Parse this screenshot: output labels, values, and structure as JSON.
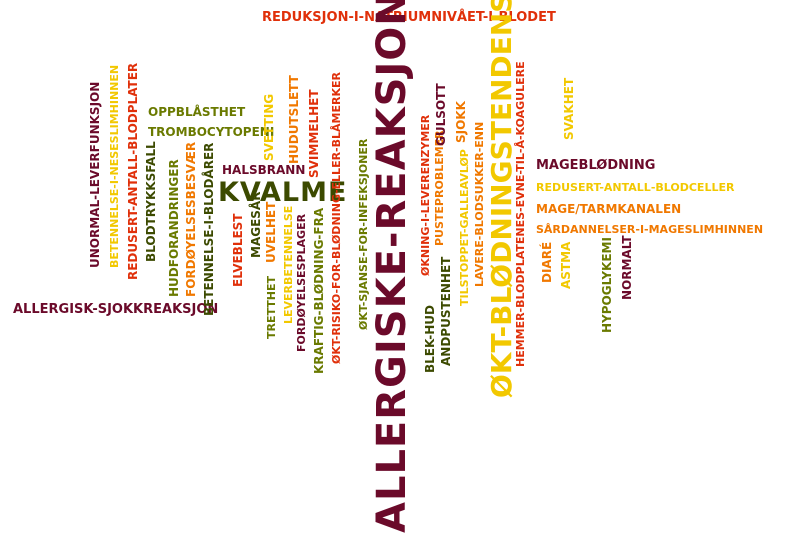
{
  "colors": {
    "maroon": "#6b0a2a",
    "red": "#e0300a",
    "orange": "#f07800",
    "gold": "#f2c800",
    "olive": "#6a7a00",
    "dark_olive": "#3c4a00"
  },
  "words": [
    {
      "id": "w1",
      "text": "REDUKSJON-I-NATRIUMNIVÅET-I-BLODET",
      "color": "red"
    },
    {
      "id": "w2",
      "text": "ALLERGISKE-REAKSJONER",
      "color": "maroon"
    },
    {
      "id": "w3",
      "text": "ØKT-BLØDNINGSTENDENS",
      "color": "gold"
    },
    {
      "id": "w4",
      "text": "KVALME",
      "color": "dark_olive"
    },
    {
      "id": "w5",
      "text": "ALLERGISK-SJOKKREAKSJON",
      "color": "maroon"
    },
    {
      "id": "w6",
      "text": "OPPBLÅSTHET",
      "color": "olive"
    },
    {
      "id": "w7",
      "text": "TROMBOCYTOPENI",
      "color": "olive"
    },
    {
      "id": "w8",
      "text": "HALSBRANN",
      "color": "maroon"
    },
    {
      "id": "w9",
      "text": "MAGEBLØDNING",
      "color": "maroon"
    },
    {
      "id": "w10",
      "text": "REDUSERT-ANTALL-BLODCELLER",
      "color": "gold"
    },
    {
      "id": "w11",
      "text": "MAGE/TARMKANALEN",
      "color": "orange"
    },
    {
      "id": "w12",
      "text": "SÅRDANNELSER-I-MAGESLIMHINNEN",
      "color": "orange"
    },
    {
      "id": "w13",
      "text": "UNORMAL-LEVERFUNKSJON",
      "color": "maroon"
    },
    {
      "id": "w14",
      "text": "BETENNELSE-I-NESESLIMHINNEN",
      "color": "gold"
    },
    {
      "id": "w15",
      "text": "REDUSERT-ANTALL-BLODPLATER",
      "color": "red"
    },
    {
      "id": "w16",
      "text": "BLODTRYKKSFALL",
      "color": "dark_olive"
    },
    {
      "id": "w17",
      "text": "HUDFORANDRINGER",
      "color": "olive"
    },
    {
      "id": "w18",
      "text": "FORDØYELSESBESVÆR",
      "color": "orange"
    },
    {
      "id": "w19",
      "text": "BETENNELSE-I-BLODÅRER",
      "color": "dark_olive"
    },
    {
      "id": "w20",
      "text": "ELVEBLEST",
      "color": "red"
    },
    {
      "id": "w21",
      "text": "MAGESÅR",
      "color": "dark_olive"
    },
    {
      "id": "w22",
      "text": "UVELHET",
      "color": "orange"
    },
    {
      "id": "w23",
      "text": "TRETTHET",
      "color": "olive"
    },
    {
      "id": "w24",
      "text": "LEVERBETENNELSE",
      "color": "gold"
    },
    {
      "id": "w25",
      "text": "SVETTING",
      "color": "gold"
    },
    {
      "id": "w26",
      "text": "HUDUTSLETT",
      "color": "orange"
    },
    {
      "id": "w27",
      "text": "SVIMMELHET",
      "color": "red"
    },
    {
      "id": "w28",
      "text": "FORDØYELSESPLAGER",
      "color": "maroon"
    },
    {
      "id": "w29",
      "text": "KRAFTIG-BLØDNING-FRA",
      "color": "olive"
    },
    {
      "id": "w30",
      "text": "ØKT-RISIKO-FOR-BLØDNING-ELLER-BLÅMERKER",
      "color": "red"
    },
    {
      "id": "w31",
      "text": "ØKT-SJANSE-FOR-INFEKSJONER",
      "color": "olive"
    },
    {
      "id": "w32",
      "text": "BLEK-HUD",
      "color": "dark_olive"
    },
    {
      "id": "w33",
      "text": "ØKNING-I-LEVERENZYMER",
      "color": "red"
    },
    {
      "id": "w34",
      "text": "ANDPUSTENHET",
      "color": "dark_olive"
    },
    {
      "id": "w35",
      "text": "PUSTEPROBLEMER",
      "color": "orange"
    },
    {
      "id": "w36",
      "text": "GULSOTT",
      "color": "maroon"
    },
    {
      "id": "w37",
      "text": "SJOKK",
      "color": "orange"
    },
    {
      "id": "w38",
      "text": "TILSTOPPET-GALLEAVLØP",
      "color": "gold"
    },
    {
      "id": "w39",
      "text": "LAVERE-BLODSUKKER-ENN",
      "color": "orange"
    },
    {
      "id": "w40",
      "text": "HEMMER-BLODPLATENES-EVNE-TIL-Å-KOAGULERE",
      "color": "red"
    },
    {
      "id": "w41",
      "text": "SVAKHET",
      "color": "gold"
    },
    {
      "id": "w42",
      "text": "DIARÉ",
      "color": "orange"
    },
    {
      "id": "w43",
      "text": "ASTMA",
      "color": "gold"
    },
    {
      "id": "w44",
      "text": "HYPOGLYKEMI",
      "color": "olive"
    },
    {
      "id": "w45",
      "text": "NORMALT",
      "color": "maroon"
    }
  ]
}
